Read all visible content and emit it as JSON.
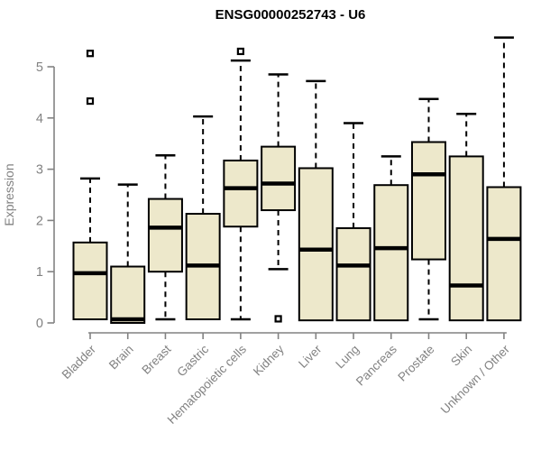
{
  "chart_data": {
    "type": "box",
    "title": "ENSG00000252743 - U6",
    "xlabel": "",
    "ylabel": "Expression",
    "ylim": [
      0,
      5
    ],
    "yticks": [
      0,
      1,
      2,
      3,
      4,
      5
    ],
    "grid": false,
    "legend": false,
    "categories": [
      "Bladder",
      "Brain",
      "Breast",
      "Gastric",
      "Hematopoietic cells",
      "Kidney",
      "Liver",
      "Lung",
      "Pancreas",
      "Prostate",
      "Skin",
      "Unknown / Other"
    ],
    "boxes": [
      {
        "label": "Bladder",
        "whisker_low": 0.07,
        "q1": 0.07,
        "median": 0.97,
        "q3": 1.57,
        "whisker_high": 2.82,
        "outliers": [
          4.33,
          5.26
        ]
      },
      {
        "label": "Brain",
        "whisker_low": 0.0,
        "q1": 0.0,
        "median": 0.07,
        "q3": 1.1,
        "whisker_high": 2.7,
        "outliers": []
      },
      {
        "label": "Breast",
        "whisker_low": 0.07,
        "q1": 1.0,
        "median": 1.86,
        "q3": 2.42,
        "whisker_high": 3.27,
        "outliers": []
      },
      {
        "label": "Gastric",
        "whisker_low": 0.07,
        "q1": 0.07,
        "median": 1.12,
        "q3": 2.13,
        "whisker_high": 4.03,
        "outliers": []
      },
      {
        "label": "Hematopoietic cells",
        "whisker_low": 0.07,
        "q1": 1.88,
        "median": 2.63,
        "q3": 3.17,
        "whisker_high": 5.12,
        "outliers": [
          5.3
        ]
      },
      {
        "label": "Kidney",
        "whisker_low": 1.05,
        "q1": 2.2,
        "median": 2.72,
        "q3": 3.44,
        "whisker_high": 4.85,
        "outliers": [
          0.08
        ]
      },
      {
        "label": "Liver",
        "whisker_low": 0.05,
        "q1": 0.05,
        "median": 1.43,
        "q3": 3.02,
        "whisker_high": 4.72,
        "outliers": []
      },
      {
        "label": "Lung",
        "whisker_low": 0.05,
        "q1": 0.05,
        "median": 1.12,
        "q3": 1.85,
        "whisker_high": 3.9,
        "outliers": []
      },
      {
        "label": "Pancreas",
        "whisker_low": 0.05,
        "q1": 0.05,
        "median": 1.46,
        "q3": 2.69,
        "whisker_high": 3.25,
        "outliers": []
      },
      {
        "label": "Prostate",
        "whisker_low": 0.07,
        "q1": 1.24,
        "median": 2.9,
        "q3": 3.53,
        "whisker_high": 4.37,
        "outliers": []
      },
      {
        "label": "Skin",
        "whisker_low": 0.05,
        "q1": 0.05,
        "median": 0.73,
        "q3": 3.25,
        "whisker_high": 4.08,
        "outliers": []
      },
      {
        "label": "Unknown / Other",
        "whisker_low": 0.05,
        "q1": 0.05,
        "median": 1.64,
        "q3": 2.65,
        "whisker_high": 5.57,
        "outliers": []
      }
    ]
  },
  "colors": {
    "box_fill": "#EDE8CB",
    "box_stroke": "#000000",
    "median": "#000000",
    "whisker": "#000000",
    "outlier_stroke": "#000000",
    "outlier_fill": "#ffffff",
    "axis": "#828282",
    "axis_text": "#828282",
    "title": "#000000",
    "background": "#ffffff"
  }
}
